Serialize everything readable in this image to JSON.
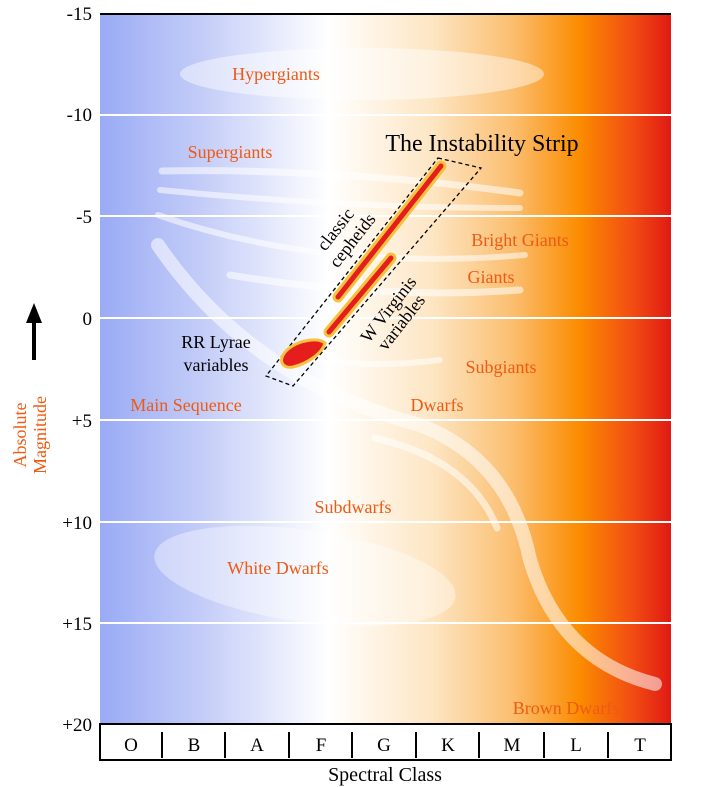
{
  "y_axis": {
    "title_line1": "Absolute",
    "title_line2": "Magnitude",
    "ticks": [
      "-15",
      "-10",
      "-5",
      "0",
      "+5",
      "+10",
      "+15",
      "+20"
    ]
  },
  "x_axis": {
    "title": "Spectral Class",
    "classes": [
      "O",
      "B",
      "A",
      "F",
      "G",
      "K",
      "M",
      "L",
      "T"
    ]
  },
  "regions": {
    "hypergiants": "Hypergiants",
    "supergiants": "Supergiants",
    "bright_giants": "Bright Giants",
    "giants": "Giants",
    "subgiants": "Subgiants",
    "main_sequence": "Main Sequence",
    "dwarfs": "Dwarfs",
    "subdwarfs": "Subdwarfs",
    "white_dwarfs": "White Dwarfs",
    "brown_dwarfs": "Brown Dwarfs"
  },
  "instability_strip": {
    "title": "The Instability Strip",
    "classic_cepheids_line1": "classic",
    "classic_cepheids_line2": "cepheids",
    "w_virginis_line1": "W Virginis",
    "w_virginis_line2": "variables",
    "rr_lyrae_line1": "RR Lyrae",
    "rr_lyrae_line2": "variables"
  },
  "colors": {
    "hot": "#9aabf5",
    "neutral": "#ffffff",
    "warm": "#fbbf72",
    "orange": "#fb8c00",
    "cool": "#e52215",
    "region_label": "#ee5a12",
    "variable_fill": "#e51d1d",
    "variable_outline": "#f7c23e"
  }
}
